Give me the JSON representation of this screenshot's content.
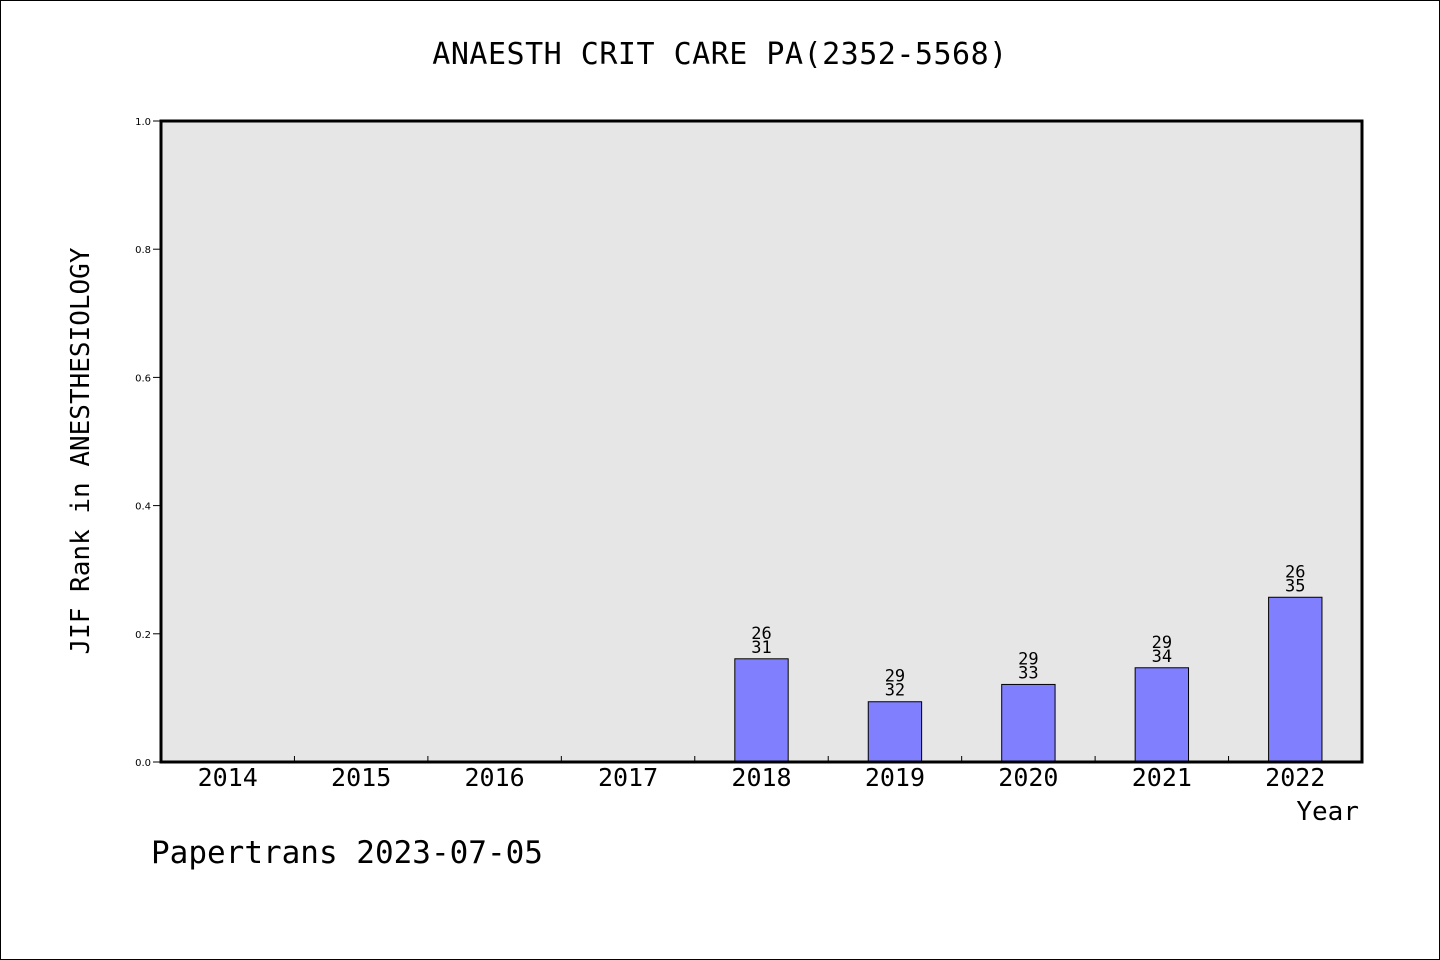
{
  "chart_data": {
    "type": "bar",
    "title": "ANAESTH CRIT CARE PA(2352-5568)",
    "xlabel": "Year",
    "ylabel": "JIF Rank in ANESTHESIOLOGY",
    "ylim": [
      0,
      1.0
    ],
    "yticks": [
      "0.0",
      "0.2",
      "0.4",
      "0.6",
      "0.8",
      "1.0"
    ],
    "categories": [
      "2014",
      "2015",
      "2016",
      "2017",
      "2018",
      "2019",
      "2020",
      "2021",
      "2022"
    ],
    "values": [
      null,
      null,
      null,
      null,
      0.161,
      0.094,
      0.121,
      0.147,
      0.257
    ],
    "bar_labels": [
      null,
      null,
      null,
      null,
      [
        "26",
        "31"
      ],
      [
        "29",
        "32"
      ],
      [
        "29",
        "33"
      ],
      [
        "29",
        "34"
      ],
      [
        "26",
        "35"
      ]
    ],
    "bar_color": "#8080ff",
    "plot_background": "#e6e6e6",
    "grid": false
  },
  "footer": "Papertrans 2023-07-05"
}
